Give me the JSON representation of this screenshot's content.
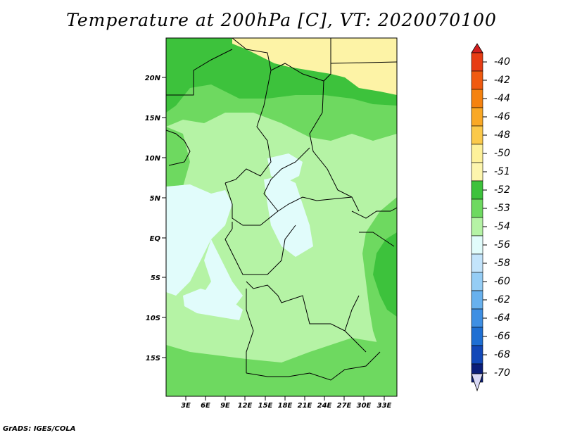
{
  "title": "Temperature at 200hPa [C], VT: 2020070100",
  "credit": "GrADS: IGES/COLA",
  "map": {
    "lat_labels": [
      "20N",
      "15N",
      "10N",
      "5N",
      "EQ",
      "5S",
      "10S",
      "15S"
    ],
    "lon_labels": [
      "3E",
      "6E",
      "9E",
      "12E",
      "15E",
      "18E",
      "21E",
      "24E",
      "27E",
      "30E",
      "33E"
    ]
  },
  "colorbar": {
    "labels": [
      "-40",
      "-42",
      "-44",
      "-46",
      "-48",
      "-50",
      "-51",
      "-52",
      "-53",
      "-54",
      "-56",
      "-58",
      "-60",
      "-62",
      "-64",
      "-66",
      "-68",
      "-70"
    ],
    "colors": {
      "top_arrow": "#d21e1e",
      "bottom_arrow": "#d8d8f5",
      "bins": [
        "#e73c14",
        "#f05a10",
        "#f5820f",
        "#f9a825",
        "#fbc94a",
        "#fef19a",
        "#fdf5ad",
        "#3dc23c",
        "#6ed960",
        "#b5f3a5",
        "#e1fcfb",
        "#c3e4fb",
        "#95cdf5",
        "#68b1ee",
        "#3e8fe3",
        "#1e6fd3",
        "#1248b8",
        "#0b1e7a"
      ]
    }
  },
  "field_colors": {
    "level_m50": "#fdf3a6",
    "level_m51": "#3dc23c",
    "level_m52": "#6ed960",
    "level_m53": "#b5f3a5",
    "level_m54": "#e1fcfb"
  }
}
